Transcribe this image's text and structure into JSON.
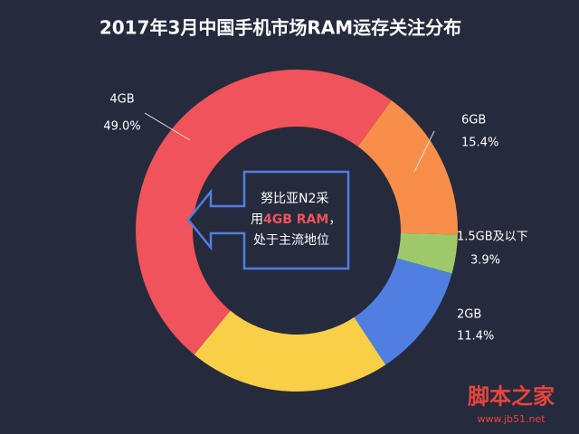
{
  "chart_data": {
    "type": "donut",
    "title": "2017年3月中国手机市场RAM运存关注分布",
    "categories": [
      "6GB",
      "1.5GB及以下",
      "2GB",
      null,
      "4GB"
    ],
    "values": [
      15.4,
      3.9,
      11.4,
      20.3,
      49.0
    ],
    "value_labels": [
      "15.4%",
      "3.9%",
      "11.4%",
      null,
      "49.0%"
    ],
    "colors": [
      "#f78f4a",
      "#9dc96a",
      "#4f7fe0",
      "#f8cf47",
      "#f0535a"
    ],
    "annotation": [
      "努比亚N2采",
      "用",
      "4GB RAM",
      "，",
      "处于主流地位"
    ]
  },
  "watermark": {
    "name": "脚本之家",
    "url": "www.jb51.net"
  }
}
